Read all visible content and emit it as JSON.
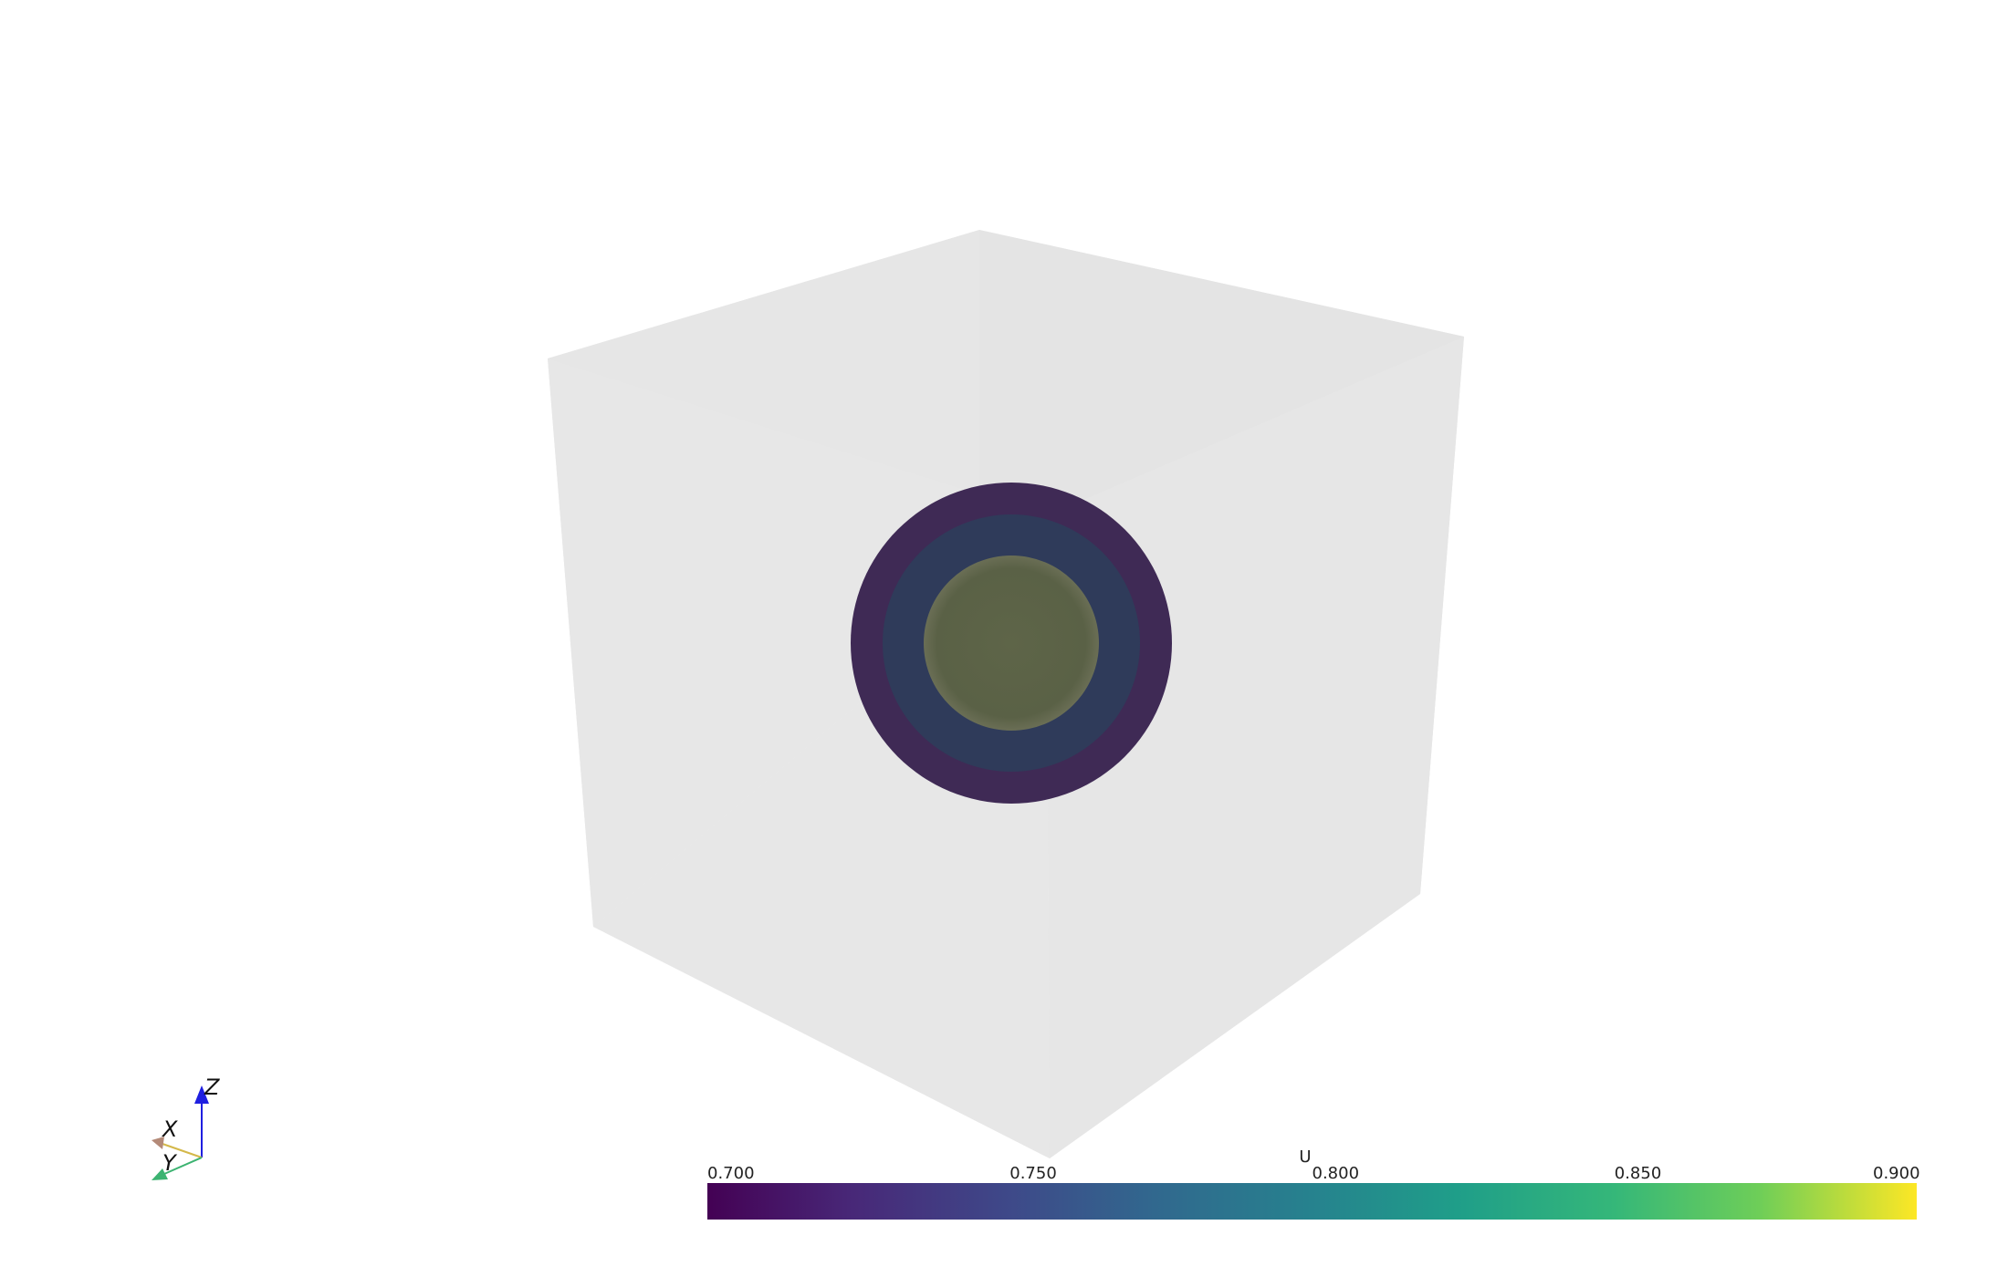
{
  "colorbar": {
    "title": "U",
    "ticks": [
      "0.700",
      "0.750",
      "0.800",
      "0.850",
      "0.900"
    ],
    "range": [
      0.7,
      0.9
    ],
    "colormap": "viridis"
  },
  "orientation_axes": {
    "x_label": "X",
    "y_label": "Y",
    "z_label": "Z",
    "x_color": "#b48a78",
    "y_color": "#3cb371",
    "z_color": "#1f1fe0"
  },
  "scene": {
    "background": "#ffffff",
    "box_color": "#e6e6e6",
    "shells": [
      {
        "value": 0.72,
        "color": "#3f2a55"
      },
      {
        "value": 0.76,
        "color": "#2f3b5a"
      },
      {
        "value": 0.86,
        "color": "#5b6247"
      }
    ]
  }
}
